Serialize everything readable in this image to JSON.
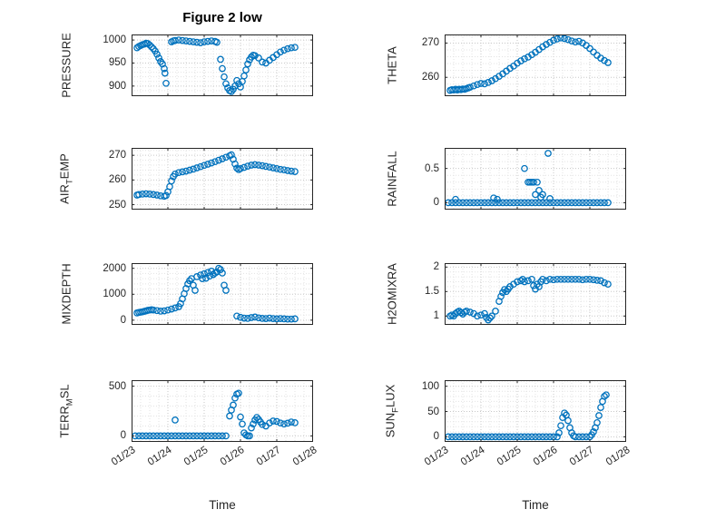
{
  "figure": {
    "title": "Figure 2 low"
  },
  "marker_color": "#0072BD",
  "x_axis": {
    "label": "Time",
    "range": [
      23,
      28
    ],
    "minor_step": 0.25,
    "ticks": [
      23,
      24,
      25,
      26,
      27,
      28
    ],
    "tick_labels": [
      "01/23",
      "01/24",
      "01/25",
      "01/26",
      "01/27",
      "01/28"
    ]
  },
  "chart_data": [
    {
      "name": "PRESSURE",
      "type": "scatter",
      "ylabel": "PRESSURE",
      "ylabel_parts": [
        {
          "t": "PRESSURE",
          "sub": false
        }
      ],
      "ylim": [
        878,
        1012
      ],
      "yticks": [
        900,
        950,
        1000
      ],
      "y_minor": 10,
      "show_xticks": false,
      "x": [
        23.15,
        23.2,
        23.25,
        23.3,
        23.35,
        23.4,
        23.45,
        23.5,
        23.55,
        23.6,
        23.65,
        23.7,
        23.75,
        23.8,
        23.85,
        23.9,
        23.92,
        23.95,
        24.1,
        24.15,
        24.2,
        24.3,
        24.4,
        24.5,
        24.6,
        24.7,
        24.8,
        24.9,
        25.0,
        25.1,
        25.2,
        25.3,
        25.35,
        25.45,
        25.5,
        25.55,
        25.6,
        25.65,
        25.7,
        25.75,
        25.8,
        25.85,
        25.9,
        25.95,
        26.0,
        26.05,
        26.1,
        26.15,
        26.2,
        26.25,
        26.3,
        26.35,
        26.4,
        26.5,
        26.6,
        26.7,
        26.8,
        26.9,
        27.0,
        27.1,
        27.2,
        27.3,
        27.4,
        27.5
      ],
      "y": [
        983,
        986,
        988,
        990,
        991,
        993,
        992,
        989,
        985,
        981,
        976,
        969,
        961,
        953,
        948,
        938,
        928,
        906,
        996,
        998,
        999,
        1000,
        999,
        998,
        997,
        996,
        995,
        994,
        996,
        997,
        998,
        997,
        995,
        958,
        938,
        920,
        905,
        896,
        890,
        888,
        893,
        900,
        912,
        905,
        898,
        910,
        922,
        935,
        948,
        957,
        963,
        967,
        966,
        961,
        952,
        950,
        956,
        962,
        968,
        974,
        978,
        981,
        983,
        984
      ]
    },
    {
      "name": "THETA",
      "type": "scatter",
      "ylabel": "THETA",
      "ylabel_parts": [
        {
          "t": "THETA",
          "sub": false
        }
      ],
      "ylim": [
        254.5,
        272.5
      ],
      "yticks": [
        260,
        270
      ],
      "y_minor": 2,
      "show_xticks": false,
      "x": [
        23.15,
        23.2,
        23.25,
        23.3,
        23.35,
        23.4,
        23.45,
        23.5,
        23.55,
        23.6,
        23.65,
        23.7,
        23.8,
        23.9,
        24.0,
        24.1,
        24.2,
        24.3,
        24.4,
        24.5,
        24.6,
        24.7,
        24.8,
        24.9,
        25.0,
        25.1,
        25.2,
        25.3,
        25.4,
        25.5,
        25.6,
        25.7,
        25.8,
        25.9,
        26.0,
        26.1,
        26.2,
        26.3,
        26.4,
        26.5,
        26.6,
        26.7,
        26.8,
        26.9,
        27.0,
        27.1,
        27.2,
        27.3,
        27.4,
        27.5
      ],
      "y": [
        256.2,
        256.4,
        256.3,
        256.5,
        256.3,
        256.5,
        256.4,
        256.6,
        256.5,
        256.7,
        256.9,
        257.1,
        257.5,
        257.9,
        258.2,
        258.1,
        258.5,
        259.0,
        259.6,
        260.3,
        261.0,
        261.8,
        262.6,
        263.3,
        264.1,
        264.8,
        265.4,
        265.9,
        266.6,
        267.3,
        268.1,
        268.9,
        269.6,
        270.2,
        270.8,
        271.2,
        271.5,
        271.3,
        271.0,
        270.6,
        270.3,
        270.5,
        270.0,
        269.3,
        268.4,
        267.4,
        266.4,
        265.6,
        264.9,
        264.3
      ]
    },
    {
      "name": "AIR_TEMP",
      "type": "scatter",
      "ylabel": "AIR_TEMP",
      "ylabel_parts": [
        {
          "t": "AIR",
          "sub": false
        },
        {
          "t": "T",
          "sub": true
        },
        {
          "t": "EMP",
          "sub": false
        }
      ],
      "ylim": [
        248,
        273
      ],
      "yticks": [
        250,
        260,
        270
      ],
      "y_minor": 2,
      "show_xticks": false,
      "x": [
        23.15,
        23.2,
        23.3,
        23.4,
        23.5,
        23.6,
        23.7,
        23.8,
        23.9,
        23.95,
        24.0,
        24.05,
        24.1,
        24.15,
        24.2,
        24.3,
        24.4,
        24.5,
        24.6,
        24.7,
        24.8,
        24.9,
        25.0,
        25.1,
        25.2,
        25.3,
        25.4,
        25.5,
        25.6,
        25.7,
        25.75,
        25.8,
        25.85,
        25.9,
        25.95,
        26.0,
        26.1,
        26.2,
        26.3,
        26.4,
        26.5,
        26.6,
        26.7,
        26.8,
        26.9,
        27.0,
        27.1,
        27.2,
        27.3,
        27.4,
        27.5
      ],
      "y": [
        253.9,
        254.1,
        254.3,
        254.4,
        254.3,
        254.1,
        253.9,
        253.6,
        253.4,
        253.7,
        255.2,
        257.3,
        259.6,
        261.4,
        262.4,
        263.0,
        263.3,
        263.6,
        264.0,
        264.4,
        264.9,
        265.4,
        265.9,
        266.4,
        266.9,
        267.4,
        268.0,
        268.6,
        269.2,
        269.8,
        270.2,
        268.4,
        266.5,
        264.8,
        264.2,
        264.6,
        265.1,
        265.6,
        266.0,
        266.2,
        266.0,
        265.8,
        265.5,
        265.2,
        264.9,
        264.6,
        264.3,
        264.1,
        263.8,
        263.6,
        263.4
      ]
    },
    {
      "name": "RAINFALL",
      "type": "scatter",
      "ylabel": "RAINFALL",
      "ylabel_parts": [
        {
          "t": "RAINFALL",
          "sub": false
        }
      ],
      "ylim": [
        -0.1,
        0.8
      ],
      "yticks": [
        0,
        0.5
      ],
      "y_minor": 0.1,
      "show_xticks": false,
      "x": [
        23.1,
        23.2,
        23.3,
        23.4,
        23.5,
        23.6,
        23.7,
        23.8,
        23.9,
        24.0,
        24.1,
        24.2,
        24.3,
        24.4,
        24.5,
        24.6,
        24.7,
        24.8,
        24.9,
        25.0,
        25.1,
        25.2,
        25.3,
        25.4,
        25.5,
        25.6,
        25.7,
        25.8,
        25.9,
        26.0,
        26.1,
        26.2,
        26.3,
        26.4,
        26.5,
        26.6,
        26.7,
        26.8,
        26.9,
        27.0,
        27.1,
        27.2,
        27.3,
        27.4,
        27.5,
        23.3,
        24.35,
        24.45,
        25.2,
        25.3,
        25.35,
        25.4,
        25.45,
        25.5,
        25.55,
        25.6,
        25.65,
        25.7,
        25.85,
        25.9
      ],
      "y": [
        0,
        0,
        0,
        0,
        0,
        0,
        0,
        0,
        0,
        0,
        0,
        0,
        0,
        0,
        0,
        0,
        0,
        0,
        0,
        0,
        0,
        0,
        0,
        0,
        0,
        0,
        0,
        0,
        0,
        0,
        0,
        0,
        0,
        0,
        0,
        0,
        0,
        0,
        0,
        0,
        0,
        0,
        0,
        0,
        0,
        0.05,
        0.07,
        0.05,
        0.5,
        0.3,
        0.3,
        0.3,
        0.3,
        0.12,
        0.3,
        0.18,
        0.08,
        0.12,
        0.72,
        0.06
      ]
    },
    {
      "name": "MIXDEPTH",
      "type": "scatter",
      "ylabel": "MIXDEPTH",
      "ylabel_parts": [
        {
          "t": "MIXDEPTH",
          "sub": false
        }
      ],
      "ylim": [
        -180,
        2200
      ],
      "yticks": [
        0,
        1000,
        2000
      ],
      "y_minor": 200,
      "show_xticks": false,
      "x": [
        23.15,
        23.2,
        23.25,
        23.3,
        23.35,
        23.4,
        23.45,
        23.5,
        23.55,
        23.6,
        23.7,
        23.8,
        23.9,
        24.0,
        24.1,
        24.2,
        24.3,
        24.35,
        24.4,
        24.45,
        24.5,
        24.55,
        24.6,
        24.65,
        24.7,
        24.75,
        24.8,
        24.9,
        24.95,
        25.0,
        25.05,
        25.1,
        25.15,
        25.2,
        25.25,
        25.3,
        25.35,
        25.4,
        25.45,
        25.5,
        25.55,
        25.6,
        25.9,
        26.0,
        26.1,
        26.2,
        26.3,
        26.4,
        26.5,
        26.6,
        26.7,
        26.8,
        26.9,
        27.0,
        27.1,
        27.2,
        27.3,
        27.4,
        27.5
      ],
      "y": [
        280,
        300,
        310,
        320,
        340,
        360,
        380,
        390,
        400,
        390,
        370,
        350,
        360,
        390,
        430,
        470,
        520,
        640,
        820,
        1020,
        1220,
        1400,
        1520,
        1600,
        1350,
        1150,
        1680,
        1740,
        1600,
        1790,
        1620,
        1840,
        1700,
        1890,
        1760,
        1820,
        1860,
        2000,
        1950,
        1820,
        1350,
        1150,
        160,
        110,
        80,
        70,
        100,
        120,
        90,
        70,
        60,
        80,
        60,
        50,
        60,
        50,
        40,
        40,
        50
      ]
    },
    {
      "name": "H2OMIXRA",
      "type": "scatter",
      "ylabel": "H2OMIXRA",
      "ylabel_parts": [
        {
          "t": "H2OMIXRA",
          "sub": false
        }
      ],
      "ylim": [
        0.82,
        2.08
      ],
      "yticks": [
        1,
        1.5,
        2
      ],
      "y_minor": 0.1,
      "show_xticks": false,
      "x": [
        23.15,
        23.2,
        23.25,
        23.3,
        23.35,
        23.4,
        23.45,
        23.5,
        23.55,
        23.6,
        23.7,
        23.8,
        23.9,
        24.0,
        24.1,
        24.15,
        24.2,
        24.25,
        24.3,
        24.4,
        24.5,
        24.55,
        24.6,
        24.65,
        24.7,
        24.75,
        24.8,
        24.9,
        25.0,
        25.1,
        25.15,
        25.2,
        25.3,
        25.4,
        25.45,
        25.5,
        25.55,
        25.6,
        25.65,
        25.7,
        25.8,
        25.9,
        26.0,
        26.1,
        26.2,
        26.3,
        26.4,
        26.5,
        26.6,
        26.7,
        26.8,
        26.9,
        27.0,
        27.1,
        27.2,
        27.3,
        27.4,
        27.5
      ],
      "y": [
        1.0,
        1.02,
        1.0,
        1.05,
        1.08,
        1.1,
        1.07,
        1.04,
        1.08,
        1.1,
        1.08,
        1.05,
        1.0,
        1.02,
        1.05,
        0.97,
        0.92,
        0.96,
        1.0,
        1.1,
        1.3,
        1.4,
        1.48,
        1.54,
        1.5,
        1.55,
        1.6,
        1.65,
        1.7,
        1.72,
        1.75,
        1.7,
        1.72,
        1.75,
        1.62,
        1.55,
        1.65,
        1.6,
        1.7,
        1.75,
        1.72,
        1.75,
        1.74,
        1.75,
        1.75,
        1.75,
        1.75,
        1.75,
        1.75,
        1.75,
        1.74,
        1.75,
        1.75,
        1.74,
        1.73,
        1.72,
        1.68,
        1.65
      ]
    },
    {
      "name": "TERR_MSL",
      "type": "scatter",
      "ylabel": "TERR_MSL",
      "ylabel_parts": [
        {
          "t": "TERR",
          "sub": false
        },
        {
          "t": "M",
          "sub": true
        },
        {
          "t": "SL",
          "sub": false
        }
      ],
      "ylim": [
        -60,
        560
      ],
      "yticks": [
        0,
        500
      ],
      "y_minor": 100,
      "show_xticks": true,
      "x": [
        23.1,
        23.2,
        23.3,
        23.4,
        23.5,
        23.6,
        23.7,
        23.8,
        23.9,
        24.0,
        24.1,
        24.2,
        24.3,
        24.4,
        24.5,
        24.6,
        24.7,
        24.8,
        24.9,
        25.0,
        25.1,
        25.2,
        25.3,
        25.4,
        25.5,
        25.6,
        24.2,
        25.7,
        25.75,
        25.8,
        25.85,
        25.9,
        25.95,
        26.0,
        26.05,
        26.1,
        26.15,
        26.2,
        26.25,
        26.3,
        26.35,
        26.4,
        26.45,
        26.5,
        26.55,
        26.6,
        26.7,
        26.8,
        26.9,
        27.0,
        27.1,
        27.2,
        27.3,
        27.4,
        27.5
      ],
      "y": [
        0,
        0,
        0,
        0,
        0,
        0,
        0,
        0,
        0,
        0,
        0,
        0,
        0,
        0,
        0,
        0,
        0,
        0,
        0,
        0,
        0,
        0,
        0,
        0,
        0,
        0,
        160,
        200,
        260,
        310,
        380,
        420,
        430,
        190,
        120,
        30,
        10,
        0,
        0,
        80,
        120,
        160,
        185,
        165,
        140,
        115,
        100,
        130,
        150,
        145,
        130,
        120,
        128,
        140,
        132
      ]
    },
    {
      "name": "SUN_FLUX",
      "type": "scatter",
      "ylabel": "SUN_FLUX",
      "ylabel_parts": [
        {
          "t": "SUN",
          "sub": false
        },
        {
          "t": "F",
          "sub": true
        },
        {
          "t": "LUX",
          "sub": false
        }
      ],
      "ylim": [
        -10,
        112
      ],
      "yticks": [
        0,
        50,
        100
      ],
      "y_minor": 10,
      "show_xticks": true,
      "x": [
        23.1,
        23.2,
        23.3,
        23.4,
        23.5,
        23.6,
        23.7,
        23.8,
        23.9,
        24.0,
        24.1,
        24.2,
        24.3,
        24.4,
        24.5,
        24.6,
        24.7,
        24.8,
        24.9,
        25.0,
        25.1,
        25.2,
        25.3,
        25.4,
        25.5,
        25.6,
        25.7,
        25.8,
        25.9,
        26.0,
        26.1,
        26.15,
        26.2,
        26.25,
        26.3,
        26.35,
        26.4,
        26.45,
        26.5,
        26.55,
        26.6,
        26.7,
        26.8,
        26.9,
        27.0,
        27.05,
        27.1,
        27.15,
        27.2,
        27.25,
        27.3,
        27.35,
        27.4,
        27.45
      ],
      "y": [
        0,
        0,
        0,
        0,
        0,
        0,
        0,
        0,
        0,
        0,
        0,
        0,
        0,
        0,
        0,
        0,
        0,
        0,
        0,
        0,
        0,
        0,
        0,
        0,
        0,
        0,
        0,
        0,
        0,
        0,
        0,
        8,
        22,
        38,
        47,
        43,
        32,
        18,
        8,
        2,
        0,
        0,
        0,
        0,
        0,
        4,
        10,
        18,
        28,
        42,
        58,
        70,
        80,
        83
      ]
    }
  ]
}
